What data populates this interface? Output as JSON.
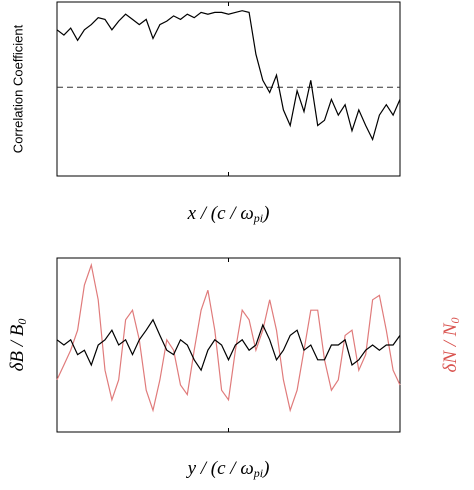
{
  "chart_data": [
    {
      "type": "line",
      "ylabel": "Correlation Coefficient",
      "xlabel": [
        "x / (c / ω",
        "pi",
        ")"
      ],
      "xlim": [
        0,
        100
      ],
      "ylim": [
        0,
        1
      ],
      "hline": 0.51,
      "x": [
        0,
        2,
        4,
        6,
        8,
        10,
        12,
        14,
        16,
        18,
        20,
        22,
        24,
        26,
        28,
        30,
        32,
        34,
        36,
        38,
        40,
        42,
        44,
        46,
        48,
        50,
        52,
        54,
        56,
        58,
        60,
        62,
        64,
        66,
        68,
        70,
        72,
        74,
        76,
        78,
        80,
        82,
        84,
        86,
        88,
        90,
        92,
        94,
        96,
        98,
        100
      ],
      "series": [
        {
          "color": "#000000",
          "values": [
            0.84,
            0.81,
            0.85,
            0.78,
            0.84,
            0.87,
            0.91,
            0.9,
            0.84,
            0.89,
            0.93,
            0.9,
            0.87,
            0.9,
            0.79,
            0.87,
            0.89,
            0.92,
            0.9,
            0.93,
            0.91,
            0.94,
            0.93,
            0.94,
            0.94,
            0.93,
            0.94,
            0.95,
            0.94,
            0.7,
            0.55,
            0.48,
            0.58,
            0.38,
            0.29,
            0.49,
            0.37,
            0.55,
            0.29,
            0.32,
            0.44,
            0.35,
            0.41,
            0.26,
            0.38,
            0.29,
            0.21,
            0.35,
            0.41,
            0.35,
            0.44
          ]
        }
      ]
    },
    {
      "type": "line",
      "ylabel": [
        "δB / B",
        "0"
      ],
      "y2label": [
        "δN / N",
        "0"
      ],
      "y2label_color": "#d9534f",
      "xlabel": [
        "y / (c / ω",
        "pi",
        ")"
      ],
      "xlim": [
        0,
        100
      ],
      "ylim": [
        -1,
        1
      ],
      "x": [
        0,
        2,
        4,
        6,
        8,
        10,
        12,
        14,
        16,
        18,
        20,
        22,
        24,
        26,
        28,
        30,
        32,
        34,
        36,
        38,
        40,
        42,
        44,
        46,
        48,
        50,
        52,
        54,
        56,
        58,
        60,
        62,
        64,
        66,
        68,
        70,
        72,
        74,
        76,
        78,
        80,
        82,
        84,
        86,
        88,
        90,
        92,
        94,
        96,
        98,
        100
      ],
      "series": [
        {
          "color": "#e07b7b",
          "values": [
            -0.4,
            -0.23,
            -0.06,
            0.17,
            0.69,
            0.92,
            0.52,
            -0.29,
            -0.63,
            -0.4,
            0.29,
            0.4,
            0.06,
            -0.52,
            -0.75,
            -0.4,
            0.06,
            -0.06,
            -0.46,
            -0.57,
            -0.06,
            0.4,
            0.63,
            0.17,
            -0.52,
            -0.63,
            -0.06,
            0.4,
            0.29,
            -0.06,
            0.17,
            0.52,
            0.17,
            -0.4,
            -0.75,
            -0.52,
            -0.06,
            0.4,
            0.4,
            -0.17,
            -0.52,
            -0.4,
            0.11,
            0.17,
            -0.29,
            -0.11,
            0.52,
            0.57,
            0.17,
            -0.29,
            -0.46
          ]
        },
        {
          "color": "#000000",
          "values": [
            0.06,
            0,
            0.06,
            -0.11,
            -0.06,
            -0.23,
            0,
            0.06,
            0.17,
            0,
            0.06,
            -0.11,
            0.06,
            0.17,
            0.29,
            0.11,
            -0.06,
            -0.11,
            0.06,
            0,
            -0.17,
            -0.29,
            -0.06,
            0.06,
            0,
            -0.17,
            0,
            0.06,
            -0.06,
            0,
            0.23,
            0.06,
            -0.17,
            -0.06,
            0.11,
            0.17,
            -0.06,
            0,
            -0.17,
            -0.17,
            0,
            0,
            0.06,
            -0.23,
            -0.17,
            -0.06,
            0,
            -0.06,
            0,
            0,
            0.11
          ]
        }
      ]
    }
  ]
}
